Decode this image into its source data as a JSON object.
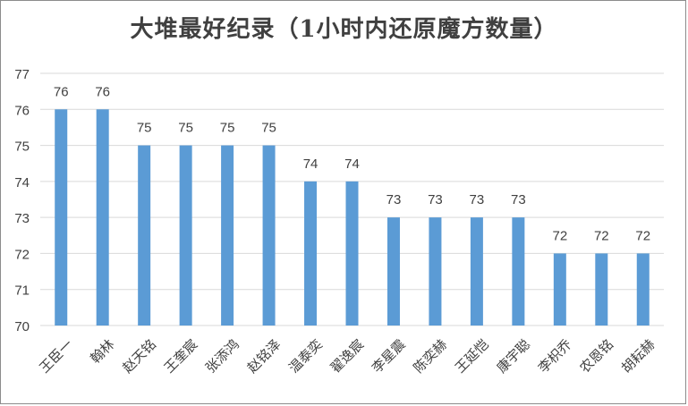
{
  "chart_data": {
    "type": "bar",
    "title": "大堆最好纪录（1小时内还原魔方数量）",
    "xlabel": "",
    "ylabel": "",
    "categories": [
      "王臣一",
      "翰林",
      "赵天铭",
      "王奎宸",
      "张添鸿",
      "赵铭泽",
      "温泰奕",
      "翟逸宸",
      "李星震",
      "陈奕赫",
      "王延恺",
      "康宇聪",
      "李枳乔",
      "农恩铭",
      "胡耘赫"
    ],
    "values": [
      76,
      76,
      75,
      75,
      75,
      75,
      74,
      74,
      73,
      73,
      73,
      73,
      72,
      72,
      72
    ],
    "ylim": [
      70,
      77
    ],
    "yticks": [
      70,
      71,
      72,
      73,
      74,
      75,
      76,
      77
    ],
    "grid": true,
    "legend": "none",
    "data_labels": true,
    "bar_color": "#5b9bd5",
    "grid_color": "#d9d9d9",
    "text_color": "#404040"
  }
}
